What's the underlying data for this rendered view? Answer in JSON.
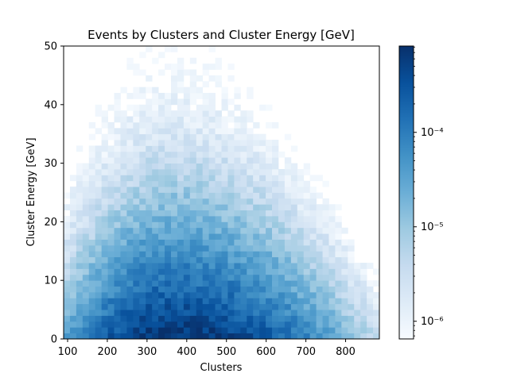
{
  "chart_data": {
    "type": "heatmap",
    "title": "Events by Clusters and Cluster Energy [GeV]",
    "xlabel": "Clusters",
    "ylabel": "Cluster Energy [GeV]",
    "xlim": [
      90,
      885
    ],
    "ylim": [
      0,
      50
    ],
    "x_ticks": [
      100,
      200,
      300,
      400,
      500,
      600,
      700,
      800
    ],
    "y_ticks": [
      0,
      10,
      20,
      30,
      40,
      50
    ],
    "x_bins": 50,
    "y_bins": 50,
    "colormap": "Blues",
    "color_scale": "log",
    "color_range": [
      6.5e-07,
      0.00082
    ],
    "colorbar_ticks": [
      {
        "value": 1e-06,
        "label": "10⁻⁶"
      },
      {
        "value": 1e-05,
        "label": "10⁻⁵"
      },
      {
        "value": 0.0001,
        "label": "10⁻⁴"
      }
    ],
    "density_model": {
      "peak_x": 360,
      "x_sigma_low": 105,
      "x_sigma_high": 160,
      "energy_decay_gev": 5.5,
      "peak_density": 0.0008
    },
    "grid": false,
    "legend": "none"
  }
}
